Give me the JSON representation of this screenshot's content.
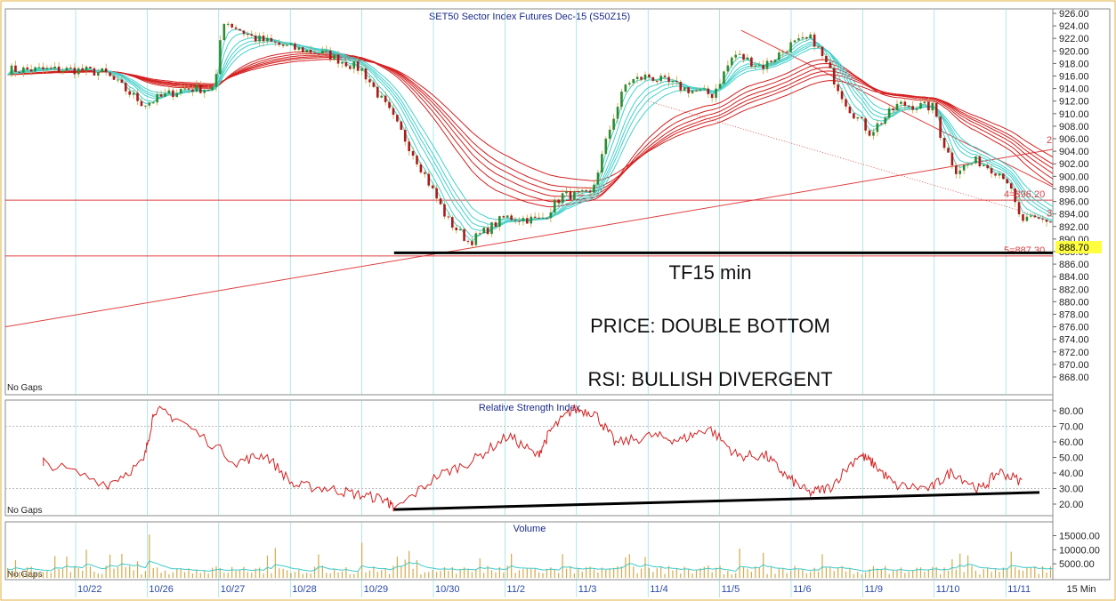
{
  "colors": {
    "candle_up": "#2e8b2e",
    "candle_down": "#b01818",
    "fast_ribbon": "#45d0cc",
    "slow_ribbon": "#d42020",
    "rsi_line": "#d42020",
    "volume_bar": "#d4aa4a",
    "volume_avg": "#3ec9c9",
    "level_line": "#e04040",
    "panel_border": "#888888",
    "axis_text": "#222222",
    "date_text": "#2a4aaa",
    "frame": "#e0b040",
    "price_tag": "#ffff40"
  },
  "annotations": {
    "timeframe": "TF15 min",
    "price_pattern": "PRICE: DOUBLE BOTTOM",
    "rsi_pattern": "RSI: BULLISH DIVERGENT"
  },
  "chart_data": [
    {
      "type": "candlestick",
      "title": "SET50 Sector Index Futures Dec-15 (S50Z15)",
      "status_label": "No Gaps",
      "ylim": [
        866,
        926
      ],
      "y_ticks": [
        "926.00",
        "924.00",
        "922.00",
        "920.00",
        "918.00",
        "916.00",
        "914.00",
        "912.00",
        "910.00",
        "908.00",
        "906.00",
        "904.00",
        "902.00",
        "900.00",
        "898.00",
        "896.00",
        "894.00",
        "892.00",
        "890.00",
        "888.00",
        "886.00",
        "884.00",
        "882.00",
        "880.00",
        "878.00",
        "876.00",
        "874.00",
        "872.00",
        "870.00",
        "868.00"
      ],
      "last_price": "888.70",
      "levels": [
        {
          "value": 896.2,
          "label": "4=896.20"
        },
        {
          "value": 887.3,
          "label": "5=887.30"
        }
      ],
      "level_markers": [
        "2",
        "3"
      ],
      "x_dates": [
        "10/22",
        "10/26",
        "10/27",
        "10/28",
        "10/29",
        "10/30",
        "11/2",
        "11/3",
        "11/4",
        "11/5",
        "11/6",
        "11/9",
        "11/10",
        "11/11"
      ],
      "close_path": [
        [
          0,
          917
        ],
        [
          0.4,
          916.5
        ],
        [
          0.95,
          911.5
        ],
        [
          1.5,
          914
        ],
        [
          1.95,
          914
        ],
        [
          2.05,
          925
        ],
        [
          2.5,
          922
        ],
        [
          3.0,
          920.5
        ],
        [
          3.5,
          919.5
        ],
        [
          4.0,
          917
        ],
        [
          4.4,
          910
        ],
        [
          4.8,
          902
        ],
        [
          5.2,
          893
        ],
        [
          5.5,
          889.5
        ],
        [
          6.0,
          893.5
        ],
        [
          6.5,
          893
        ],
        [
          6.8,
          897
        ],
        [
          7.2,
          897
        ],
        [
          7.5,
          909
        ],
        [
          7.7,
          915
        ],
        [
          8.0,
          916
        ],
        [
          8.5,
          914
        ],
        [
          8.9,
          913
        ],
        [
          9.2,
          919.5
        ],
        [
          9.6,
          917.5
        ],
        [
          10.0,
          921
        ],
        [
          10.3,
          922
        ],
        [
          10.8,
          911
        ],
        [
          11.1,
          907
        ],
        [
          11.5,
          911.5
        ],
        [
          12.0,
          911
        ],
        [
          12.1,
          906
        ],
        [
          12.3,
          901
        ],
        [
          12.6,
          902.5
        ],
        [
          13.0,
          900
        ],
        [
          13.2,
          893
        ],
        [
          13.6,
          893
        ],
        [
          14.0,
          891
        ],
        [
          14.2,
          888.7
        ]
      ]
    },
    {
      "type": "line",
      "title": "Relative Strength Index",
      "status_label": "No Gaps",
      "ylim": [
        14,
        86
      ],
      "y_ticks": [
        "80.00",
        "70.00",
        "60.00",
        "50.00",
        "40.00",
        "30.00",
        "20.00"
      ],
      "x_path": [
        0.5,
        0.5,
        1.4,
        1.9,
        2.05,
        2.4,
        3.2,
        3.6,
        4.0,
        4.5,
        4.9,
        5.3,
        5.4,
        6.0,
        6.5,
        7.0,
        7.4,
        7.6,
        7.9,
        8.2,
        8.5,
        9.0,
        9.4,
        9.8,
        10.2,
        10.6,
        10.9,
        11.2,
        11.5,
        11.9,
        12.1,
        12.4,
        12.9,
        13.2,
        13.6,
        13.85,
        14.2
      ],
      "y_path": [
        47,
        47,
        33,
        47,
        81,
        74,
        47,
        52,
        32,
        30,
        26,
        23,
        16,
        38,
        48,
        64,
        51,
        68,
        81,
        79,
        59,
        64,
        61,
        69,
        51,
        51,
        37,
        27,
        31,
        52,
        46,
        32,
        30,
        41,
        29,
        41,
        34
      ]
    },
    {
      "type": "bar",
      "title": "Volume",
      "status_label": "No Gaps",
      "ylim": [
        0,
        18000
      ],
      "y_ticks": [
        "15000.00",
        "10000.00",
        "5000.00"
      ],
      "x_unit": "15 Min"
    }
  ]
}
